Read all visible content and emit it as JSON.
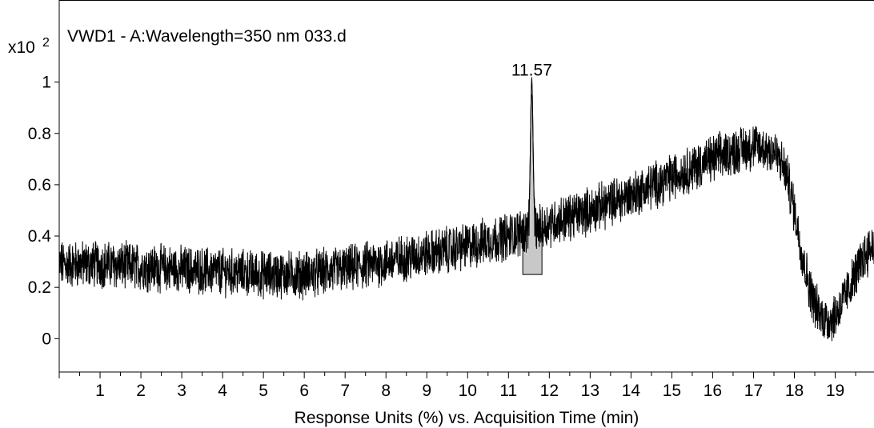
{
  "chart_data": {
    "type": "line",
    "title": "VWD1 - A:Wavelength=350 nm 033.d",
    "xlabel": "Response Units (%) vs. Acquisition Time (min)",
    "ylabel": "",
    "y_multiplier": "x10",
    "y_multiplier_exponent": "2",
    "xlim": [
      0,
      19.95
    ],
    "ylim": [
      -0.13,
      1.32
    ],
    "x_ticks": [
      "1",
      "2",
      "3",
      "4",
      "5",
      "6",
      "7",
      "8",
      "9",
      "10",
      "11",
      "12",
      "13",
      "14",
      "15",
      "16",
      "17",
      "18",
      "19"
    ],
    "y_ticks": [
      "0",
      "0.2",
      "0.4",
      "0.6",
      "0.8",
      "1"
    ],
    "grid": false,
    "legend": "none",
    "peak_annotation": {
      "label": "11.57",
      "x": 11.57,
      "y": 1.0
    },
    "peak_fill_color": "#c8c8c8",
    "series": [
      {
        "color": "#000000",
        "x": [
          0.0,
          1.0,
          2.0,
          3.0,
          4.0,
          5.0,
          6.0,
          7.0,
          8.0,
          9.0,
          10.0,
          11.0,
          11.4,
          11.57,
          11.8,
          12.0,
          13.0,
          14.0,
          15.0,
          16.0,
          16.5,
          17.0,
          17.5,
          17.8,
          18.0,
          18.2,
          18.4,
          18.6,
          18.8,
          19.0,
          19.2,
          19.5,
          19.7,
          19.95
        ],
        "y": [
          0.29,
          0.29,
          0.28,
          0.27,
          0.26,
          0.25,
          0.25,
          0.27,
          0.3,
          0.33,
          0.36,
          0.4,
          0.42,
          1.0,
          0.43,
          0.45,
          0.5,
          0.56,
          0.63,
          0.7,
          0.73,
          0.75,
          0.73,
          0.65,
          0.5,
          0.32,
          0.18,
          0.1,
          0.07,
          0.09,
          0.15,
          0.25,
          0.32,
          0.37
        ],
        "noise_amplitude": 0.08
      }
    ]
  }
}
